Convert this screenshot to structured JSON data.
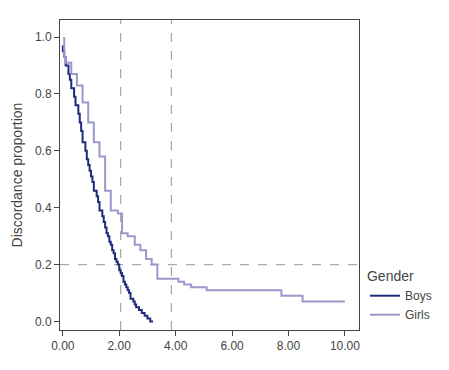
{
  "chart_data": {
    "type": "step",
    "ylabel": "Discordance proportion",
    "series": [
      {
        "name": "Boys",
        "color": "#1f2b7b",
        "x": [
          0.0,
          0.05,
          0.1,
          0.2,
          0.25,
          0.3,
          0.4,
          0.45,
          0.55,
          0.6,
          0.65,
          0.7,
          0.8,
          0.85,
          0.9,
          0.95,
          1.0,
          1.05,
          1.1,
          1.2,
          1.25,
          1.3,
          1.4,
          1.45,
          1.5,
          1.55,
          1.6,
          1.65,
          1.7,
          1.75,
          1.8,
          1.85,
          1.9,
          1.95,
          2.0,
          2.05,
          2.1,
          2.15,
          2.2,
          2.25,
          2.3,
          2.35,
          2.4,
          2.5,
          2.55,
          2.6,
          2.65,
          2.7,
          2.8,
          2.85,
          2.9,
          2.95,
          3.0,
          3.05,
          3.1,
          3.2
        ],
        "values": [
          0.97,
          0.95,
          0.93,
          0.9,
          0.87,
          0.85,
          0.82,
          0.79,
          0.76,
          0.73,
          0.7,
          0.67,
          0.63,
          0.6,
          0.57,
          0.55,
          0.53,
          0.51,
          0.49,
          0.46,
          0.44,
          0.42,
          0.39,
          0.37,
          0.35,
          0.33,
          0.31,
          0.3,
          0.28,
          0.27,
          0.25,
          0.24,
          0.22,
          0.21,
          0.2,
          0.18,
          0.17,
          0.16,
          0.14,
          0.13,
          0.12,
          0.11,
          0.1,
          0.08,
          0.07,
          0.06,
          0.05,
          0.05,
          0.04,
          0.03,
          0.03,
          0.02,
          0.02,
          0.01,
          0.01,
          0.0
        ]
      },
      {
        "name": "Girls",
        "color": "#9999cc",
        "x": [
          0.05,
          0.1,
          0.3,
          0.5,
          0.7,
          0.9,
          1.1,
          1.3,
          1.5,
          1.7,
          1.95,
          2.1,
          2.3,
          2.55,
          2.75,
          2.95,
          3.15,
          3.35,
          3.85,
          4.1,
          4.3,
          4.55,
          4.75,
          4.95,
          5.1,
          5.3,
          5.5,
          5.7,
          5.95,
          6.1,
          6.35,
          6.55,
          6.75,
          6.95,
          7.15,
          7.35,
          7.55,
          7.75,
          8.0,
          8.2,
          8.5,
          9.0,
          9.5,
          10.0
        ],
        "values": [
          1.0,
          0.93,
          0.91,
          0.87,
          0.83,
          0.77,
          0.7,
          0.63,
          0.58,
          0.46,
          0.39,
          0.38,
          0.31,
          0.3,
          0.27,
          0.25,
          0.22,
          0.2,
          0.15,
          0.15,
          0.14,
          0.13,
          0.12,
          0.12,
          0.12,
          0.11,
          0.11,
          0.11,
          0.11,
          0.11,
          0.11,
          0.11,
          0.11,
          0.11,
          0.11,
          0.11,
          0.11,
          0.11,
          0.09,
          0.09,
          0.09,
          0.07,
          0.07,
          0.07
        ]
      }
    ],
    "reference_lines": [
      {
        "x": 2.05,
        "color": "#aaaaaa",
        "line_style": "dashed"
      },
      {
        "x": 3.85,
        "color": "#aaaaaa",
        "line_style": "dashed"
      },
      {
        "y": 0.2,
        "color": "#aaaaaa",
        "line_style": "dashed"
      }
    ],
    "xlim": [
      -0.1,
      10.5
    ],
    "ylim": [
      -0.03,
      1.06
    ],
    "xticks": [
      {
        "value": 0,
        "label": "0.00"
      },
      {
        "value": 2,
        "label": "2.00"
      },
      {
        "value": 4,
        "label": "4.00"
      },
      {
        "value": 6,
        "label": "6.00"
      },
      {
        "value": 8,
        "label": "8.00"
      },
      {
        "value": 10,
        "label": "10.00"
      }
    ],
    "yticks": [
      {
        "value": 0,
        "label": "0.0"
      },
      0.2,
      0.4,
      0.6,
      0.8,
      {
        "value": 1,
        "label": "1.0"
      }
    ],
    "legend_title": "Gender",
    "legend": "lower right",
    "grid": false
  }
}
